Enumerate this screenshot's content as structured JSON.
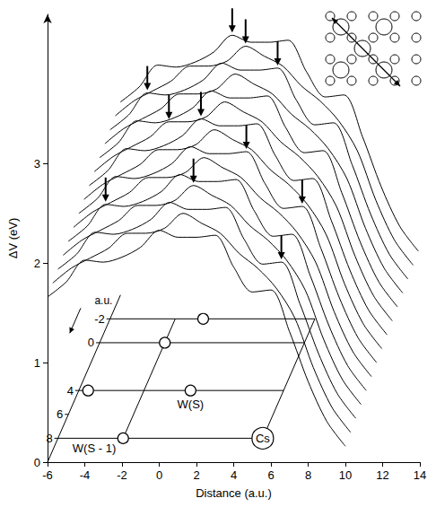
{
  "chart_data": {
    "type": "surface",
    "xlabel": "Distance (a.u.)",
    "ylabel": "ΔV (eV)",
    "xlim": [
      -6,
      14
    ],
    "xticks": [
      -6,
      -4,
      -2,
      0,
      2,
      4,
      6,
      8,
      10,
      12,
      14
    ],
    "ylim": [
      0,
      4.5
    ],
    "yticks": [
      0,
      1,
      2,
      3
    ],
    "depth_label": "a.u.",
    "depth_lim": [
      -4,
      10
    ],
    "depth_ticks": [
      -2,
      0,
      4,
      6,
      8
    ],
    "color": "#000000",
    "x": [
      -6,
      -5,
      -4,
      -3,
      -2,
      -1,
      0,
      1,
      2,
      3,
      4,
      5,
      6,
      7,
      8,
      9,
      10
    ],
    "depths": [
      -4,
      -3,
      -2,
      -1,
      0,
      1,
      2,
      3,
      4,
      5,
      6,
      7,
      8,
      9,
      10
    ],
    "values": [
      [
        1.94,
        2.09,
        2.31,
        2.29,
        2.34,
        2.44,
        2.61,
        2.54,
        2.54,
        2.56,
        2.24,
        1.99,
        2.01,
        1.59,
        1.09,
        0.69,
        0.44
      ],
      [
        1.92,
        2.07,
        2.17,
        2.27,
        2.42,
        2.42,
        2.47,
        2.62,
        2.52,
        2.42,
        2.22,
        2.07,
        1.87,
        1.57,
        1.07,
        0.67,
        0.42
      ],
      [
        1.9,
        2.05,
        2.27,
        2.25,
        2.3,
        2.4,
        2.57,
        2.5,
        2.5,
        2.52,
        2.2,
        1.95,
        1.97,
        1.55,
        1.05,
        0.65,
        0.4
      ],
      [
        1.88,
        2.03,
        2.13,
        2.23,
        2.38,
        2.38,
        2.43,
        2.58,
        2.48,
        2.38,
        2.18,
        2.03,
        1.83,
        1.53,
        1.03,
        0.63,
        0.38
      ],
      [
        1.86,
        2.01,
        2.23,
        2.21,
        2.26,
        2.36,
        2.53,
        2.46,
        2.46,
        2.48,
        2.16,
        1.91,
        1.93,
        1.51,
        1.01,
        0.61,
        0.36
      ],
      [
        1.84,
        1.99,
        2.09,
        2.19,
        2.34,
        2.34,
        2.39,
        2.54,
        2.44,
        2.34,
        2.14,
        1.99,
        1.79,
        1.49,
        0.99,
        0.59,
        0.34
      ],
      [
        1.82,
        1.97,
        2.19,
        2.17,
        2.22,
        2.32,
        2.49,
        2.42,
        2.42,
        2.44,
        2.12,
        1.87,
        1.89,
        1.47,
        0.97,
        0.57,
        0.32
      ],
      [
        1.8,
        1.95,
        2.05,
        2.15,
        2.3,
        2.3,
        2.35,
        2.5,
        2.4,
        2.3,
        2.1,
        1.95,
        1.75,
        1.45,
        0.95,
        0.55,
        0.3
      ],
      [
        1.78,
        1.93,
        2.15,
        2.13,
        2.18,
        2.28,
        2.45,
        2.38,
        2.38,
        2.4,
        2.08,
        1.83,
        1.85,
        1.43,
        0.93,
        0.53,
        0.28
      ],
      [
        1.76,
        1.91,
        2.01,
        2.11,
        2.26,
        2.26,
        2.31,
        2.46,
        2.36,
        2.26,
        2.06,
        1.91,
        1.71,
        1.41,
        0.91,
        0.51,
        0.26
      ],
      [
        1.74,
        1.89,
        2.11,
        2.09,
        2.14,
        2.24,
        2.41,
        2.34,
        2.34,
        2.36,
        2.04,
        1.79,
        1.81,
        1.39,
        0.89,
        0.49,
        0.24
      ],
      [
        1.72,
        1.87,
        1.97,
        2.07,
        2.22,
        2.22,
        2.27,
        2.42,
        2.32,
        2.22,
        2.02,
        1.87,
        1.67,
        1.37,
        0.87,
        0.47,
        0.22
      ],
      [
        1.7,
        1.85,
        2.07,
        2.05,
        2.1,
        2.2,
        2.37,
        2.3,
        2.3,
        2.32,
        2.0,
        1.75,
        1.77,
        1.35,
        0.85,
        0.45,
        0.2
      ],
      [
        1.68,
        1.83,
        1.93,
        2.03,
        2.18,
        2.18,
        2.23,
        2.38,
        2.28,
        2.18,
        1.98,
        1.83,
        1.63,
        1.33,
        0.83,
        0.43,
        0.18
      ],
      [
        1.66,
        1.81,
        2.03,
        2.01,
        2.06,
        2.16,
        2.33,
        2.26,
        2.26,
        2.28,
        1.96,
        1.71,
        1.73,
        1.31,
        0.81,
        0.41,
        0.16
      ]
    ],
    "atoms": [
      {
        "label": "W(S - 1)",
        "x": -2.5,
        "depth": 8,
        "marker": "small"
      },
      {
        "label": "Cs",
        "x": 5,
        "depth": 8,
        "marker": "large"
      },
      {
        "label": "W(S)",
        "x": 0,
        "depth": 4,
        "marker": "small"
      },
      {
        "x": -5.5,
        "depth": 4,
        "marker": "small"
      },
      {
        "x": -2.5,
        "depth": 0,
        "marker": "small"
      },
      {
        "x": -1,
        "depth": -2,
        "marker": "small"
      }
    ],
    "arrows": [
      {
        "x": 0,
        "depth": -4,
        "value": 2.61
      },
      {
        "x": 1,
        "depth": -3,
        "value": 2.62
      },
      {
        "x": -4,
        "depth": -2,
        "value": 2.27
      },
      {
        "x": 3,
        "depth": -2,
        "value": 2.52
      },
      {
        "x": -2,
        "depth": 1,
        "value": 2.34
      },
      {
        "x": 0,
        "depth": 2,
        "value": 2.49
      },
      {
        "x": 3,
        "depth": 4,
        "value": 2.4
      },
      {
        "x": 6,
        "depth": 4,
        "value": 1.85
      },
      {
        "x": -4,
        "depth": 6,
        "value": 2.11
      },
      {
        "x": 1,
        "depth": 7,
        "value": 2.42
      },
      {
        "x": 6,
        "depth": 8,
        "value": 1.77
      }
    ]
  }
}
